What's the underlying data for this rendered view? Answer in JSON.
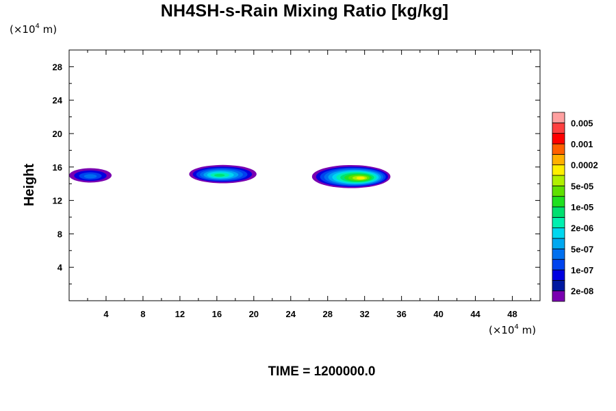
{
  "chart_data": {
    "type": "heatmap",
    "title": "NH4SH-s-Rain Mixing Ratio [kg/kg]",
    "ylabel": "Height",
    "x_unit": {
      "prefix": "(×10",
      "exp": "4",
      "suffix": " m)"
    },
    "y_unit": {
      "prefix": "(×10",
      "exp": "4",
      "suffix": " m)"
    },
    "xlim": [
      0,
      51
    ],
    "ylim": [
      0,
      30
    ],
    "x_ticks": [
      "4",
      "8",
      "12",
      "16",
      "20",
      "24",
      "28",
      "32",
      "36",
      "40",
      "44",
      "48"
    ],
    "y_ticks": [
      "4",
      "8",
      "12",
      "16",
      "20",
      "24",
      "28"
    ],
    "colorbar": {
      "colors": [
        "#7a00b0",
        "#0018a0",
        "#0000e0",
        "#0044ee",
        "#0070f0",
        "#00a8f0",
        "#00d8f0",
        "#00f0b0",
        "#00e070",
        "#20e020",
        "#60e000",
        "#b0f000",
        "#ffef00",
        "#ffb000",
        "#ff6000",
        "#ff0000",
        "#ff4040",
        "#ffa0a0"
      ],
      "labels": [
        "2e-08",
        "1e-07",
        "5e-07",
        "2e-06",
        "1e-05",
        "5e-05",
        "0.0002",
        "0.001",
        "0.005"
      ]
    },
    "clouds": [
      {
        "x": [
          0.0,
          4.6
        ],
        "y": [
          14.1,
          15.9
        ],
        "peak": "1e-07"
      },
      {
        "x": [
          13.0,
          20.3
        ],
        "y": [
          14.0,
          16.3
        ],
        "peak": "2e-06"
      },
      {
        "x": [
          26.3,
          34.8
        ],
        "y": [
          13.4,
          16.3
        ],
        "peak": "5e-05"
      }
    ]
  },
  "time_label": "TIME = 1200000.0"
}
